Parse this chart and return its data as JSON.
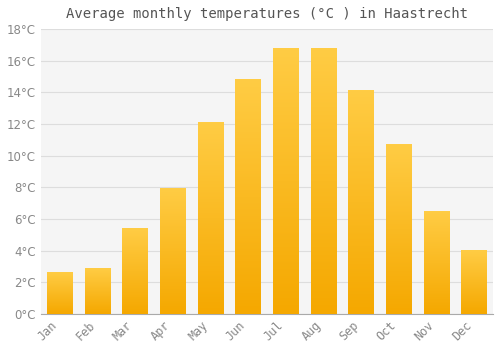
{
  "title": "Average monthly temperatures (°C ) in Haastrecht",
  "months": [
    "Jan",
    "Feb",
    "Mar",
    "Apr",
    "May",
    "Jun",
    "Jul",
    "Aug",
    "Sep",
    "Oct",
    "Nov",
    "Dec"
  ],
  "temperatures": [
    2.6,
    2.9,
    5.4,
    7.9,
    12.1,
    14.8,
    16.8,
    16.8,
    14.1,
    10.7,
    6.5,
    4.0
  ],
  "bar_color_light": "#FFCC44",
  "bar_color_dark": "#F5A800",
  "background_color": "#FFFFFF",
  "plot_bg_color": "#F5F5F5",
  "grid_color": "#DDDDDD",
  "tick_label_color": "#888888",
  "title_color": "#555555",
  "spine_color": "#AAAAAA",
  "ylim": [
    0,
    18
  ],
  "yticks": [
    0,
    2,
    4,
    6,
    8,
    10,
    12,
    14,
    16,
    18
  ],
  "title_fontsize": 10,
  "tick_fontsize": 8.5
}
